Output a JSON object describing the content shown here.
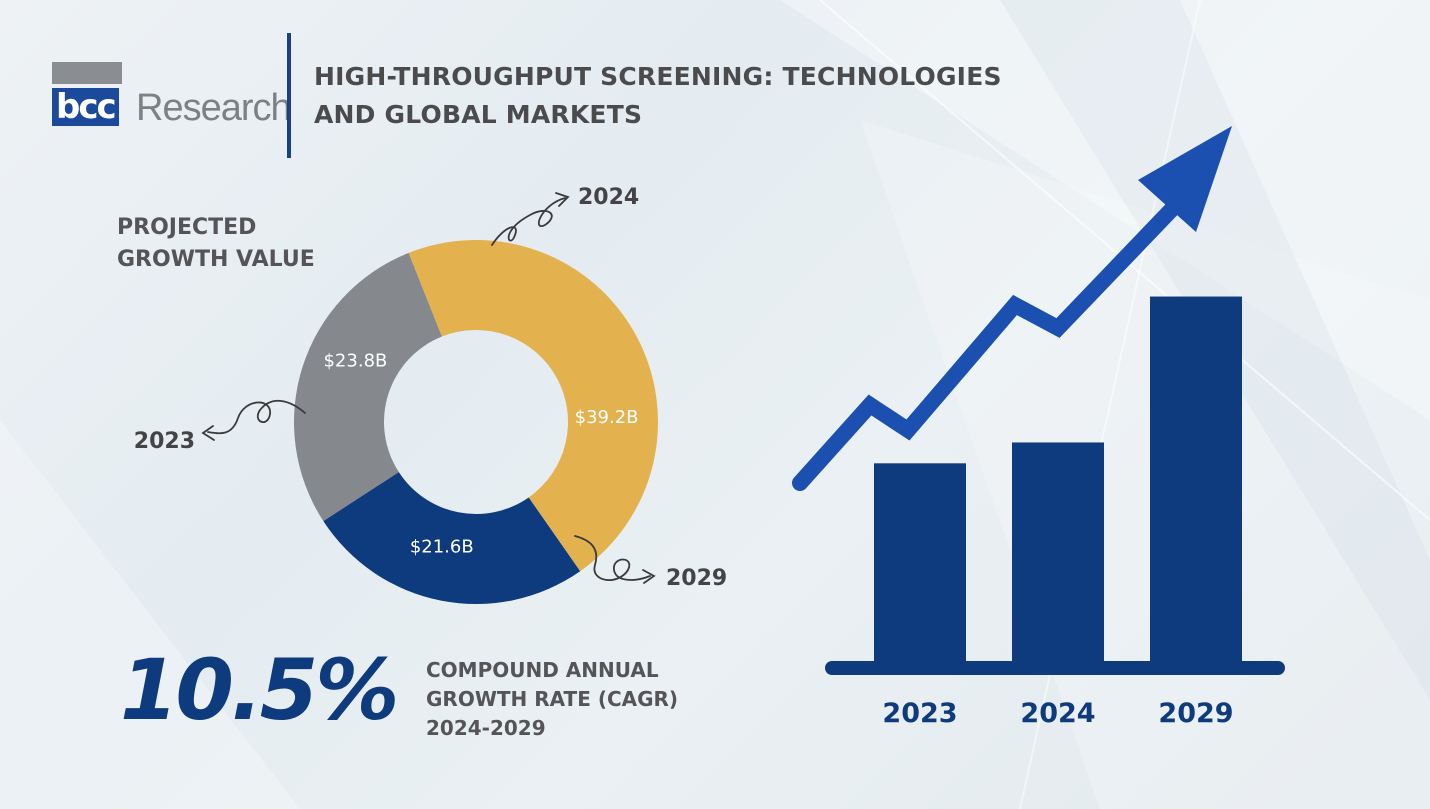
{
  "brand": {
    "logo_mark": "bcc",
    "logo_word": "Research"
  },
  "header": {
    "title_line1": "HIGH-THROUGHPUT SCREENING: TECHNOLOGIES",
    "title_line2": "AND GLOBAL MARKETS"
  },
  "donut": {
    "label_line1": "PROJECTED",
    "label_line2": "GROWTH VALUE"
  },
  "cagr": {
    "value": "10.5%",
    "line1": "COMPOUND ANNUAL",
    "line2": "GROWTH RATE (CAGR)",
    "line3": "2024-2029"
  },
  "colors": {
    "navy": "#0e3a7e",
    "gray": "#85888d",
    "gold": "#e3b24f",
    "arrow_blue": "#1b4fb0"
  },
  "chart_data": [
    {
      "type": "pie",
      "style": "donut",
      "categories": [
        "2023",
        "2024",
        "2029"
      ],
      "values": [
        21.6,
        23.8,
        39.2
      ],
      "value_labels": [
        "$21.6B",
        "$23.8B",
        "$39.2B"
      ],
      "colors": [
        "#0e3a7e",
        "#85888d",
        "#e3b24f"
      ],
      "title": ""
    },
    {
      "type": "bar",
      "categories": [
        "2023",
        "2024",
        "2029"
      ],
      "values": [
        21.6,
        23.8,
        39.2
      ],
      "ylim": [
        0,
        42
      ],
      "grid": false,
      "title": ""
    }
  ]
}
